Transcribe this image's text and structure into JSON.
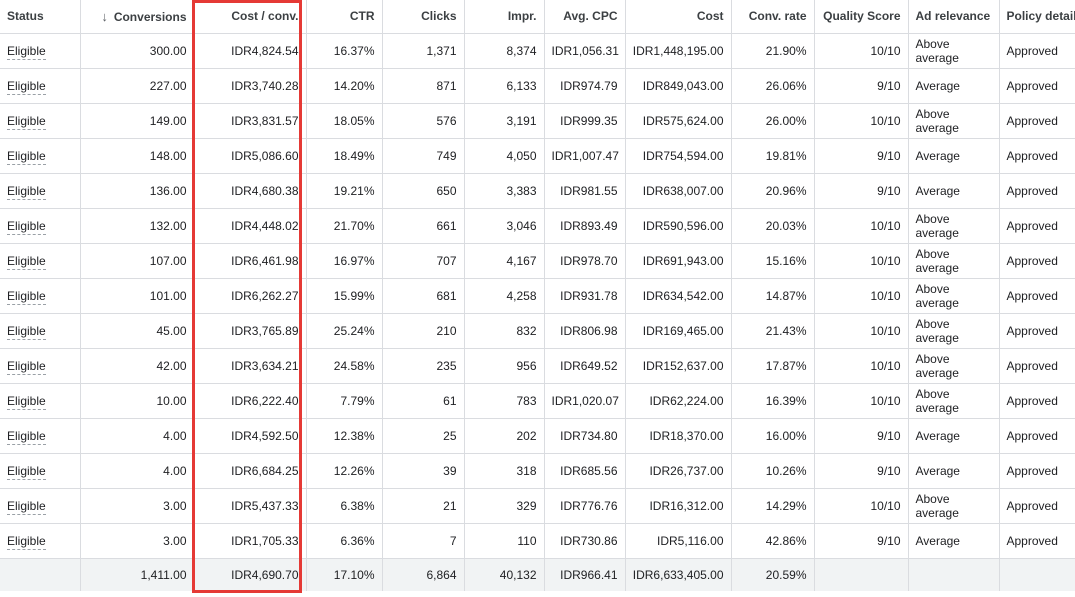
{
  "headers": {
    "status": "Status",
    "conversions": "Conversions",
    "cost_conv": "Cost / conv.",
    "ctr": "CTR",
    "clicks": "Clicks",
    "impr": "Impr.",
    "avg_cpc": "Avg. CPC",
    "cost": "Cost",
    "conv_rate": "Conv. rate",
    "quality_score": "Quality Score",
    "ad_relevance": "Ad relevance",
    "policy_details": "Policy details"
  },
  "sort_icon": "arrow-down-icon",
  "rows": [
    {
      "status": "Eligible",
      "conversions": "300.00",
      "cost_conv": "IDR4,824.54",
      "ctr": "16.37%",
      "clicks": "1,371",
      "impr": "8,374",
      "avg_cpc": "IDR1,056.31",
      "cost": "IDR1,448,195.00",
      "conv_rate": "21.90%",
      "quality_score": "10/10",
      "ad_relevance": "Above average",
      "policy": "Approved"
    },
    {
      "status": "Eligible",
      "conversions": "227.00",
      "cost_conv": "IDR3,740.28",
      "ctr": "14.20%",
      "clicks": "871",
      "impr": "6,133",
      "avg_cpc": "IDR974.79",
      "cost": "IDR849,043.00",
      "conv_rate": "26.06%",
      "quality_score": "9/10",
      "ad_relevance": "Average",
      "policy": "Approved"
    },
    {
      "status": "Eligible",
      "conversions": "149.00",
      "cost_conv": "IDR3,831.57",
      "ctr": "18.05%",
      "clicks": "576",
      "impr": "3,191",
      "avg_cpc": "IDR999.35",
      "cost": "IDR575,624.00",
      "conv_rate": "26.00%",
      "quality_score": "10/10",
      "ad_relevance": "Above average",
      "policy": "Approved"
    },
    {
      "status": "Eligible",
      "conversions": "148.00",
      "cost_conv": "IDR5,086.60",
      "ctr": "18.49%",
      "clicks": "749",
      "impr": "4,050",
      "avg_cpc": "IDR1,007.47",
      "cost": "IDR754,594.00",
      "conv_rate": "19.81%",
      "quality_score": "9/10",
      "ad_relevance": "Average",
      "policy": "Approved"
    },
    {
      "status": "Eligible",
      "conversions": "136.00",
      "cost_conv": "IDR4,680.38",
      "ctr": "19.21%",
      "clicks": "650",
      "impr": "3,383",
      "avg_cpc": "IDR981.55",
      "cost": "IDR638,007.00",
      "conv_rate": "20.96%",
      "quality_score": "9/10",
      "ad_relevance": "Average",
      "policy": "Approved"
    },
    {
      "status": "Eligible",
      "conversions": "132.00",
      "cost_conv": "IDR4,448.02",
      "ctr": "21.70%",
      "clicks": "661",
      "impr": "3,046",
      "avg_cpc": "IDR893.49",
      "cost": "IDR590,596.00",
      "conv_rate": "20.03%",
      "quality_score": "10/10",
      "ad_relevance": "Above average",
      "policy": "Approved"
    },
    {
      "status": "Eligible",
      "conversions": "107.00",
      "cost_conv": "IDR6,461.98",
      "ctr": "16.97%",
      "clicks": "707",
      "impr": "4,167",
      "avg_cpc": "IDR978.70",
      "cost": "IDR691,943.00",
      "conv_rate": "15.16%",
      "quality_score": "10/10",
      "ad_relevance": "Above average",
      "policy": "Approved"
    },
    {
      "status": "Eligible",
      "conversions": "101.00",
      "cost_conv": "IDR6,262.27",
      "ctr": "15.99%",
      "clicks": "681",
      "impr": "4,258",
      "avg_cpc": "IDR931.78",
      "cost": "IDR634,542.00",
      "conv_rate": "14.87%",
      "quality_score": "10/10",
      "ad_relevance": "Above average",
      "policy": "Approved"
    },
    {
      "status": "Eligible",
      "conversions": "45.00",
      "cost_conv": "IDR3,765.89",
      "ctr": "25.24%",
      "clicks": "210",
      "impr": "832",
      "avg_cpc": "IDR806.98",
      "cost": "IDR169,465.00",
      "conv_rate": "21.43%",
      "quality_score": "10/10",
      "ad_relevance": "Above average",
      "policy": "Approved"
    },
    {
      "status": "Eligible",
      "conversions": "42.00",
      "cost_conv": "IDR3,634.21",
      "ctr": "24.58%",
      "clicks": "235",
      "impr": "956",
      "avg_cpc": "IDR649.52",
      "cost": "IDR152,637.00",
      "conv_rate": "17.87%",
      "quality_score": "10/10",
      "ad_relevance": "Above average",
      "policy": "Approved"
    },
    {
      "status": "Eligible",
      "conversions": "10.00",
      "cost_conv": "IDR6,222.40",
      "ctr": "7.79%",
      "clicks": "61",
      "impr": "783",
      "avg_cpc": "IDR1,020.07",
      "cost": "IDR62,224.00",
      "conv_rate": "16.39%",
      "quality_score": "10/10",
      "ad_relevance": "Above average",
      "policy": "Approved"
    },
    {
      "status": "Eligible",
      "conversions": "4.00",
      "cost_conv": "IDR4,592.50",
      "ctr": "12.38%",
      "clicks": "25",
      "impr": "202",
      "avg_cpc": "IDR734.80",
      "cost": "IDR18,370.00",
      "conv_rate": "16.00%",
      "quality_score": "9/10",
      "ad_relevance": "Average",
      "policy": "Approved"
    },
    {
      "status": "Eligible",
      "conversions": "4.00",
      "cost_conv": "IDR6,684.25",
      "ctr": "12.26%",
      "clicks": "39",
      "impr": "318",
      "avg_cpc": "IDR685.56",
      "cost": "IDR26,737.00",
      "conv_rate": "10.26%",
      "quality_score": "9/10",
      "ad_relevance": "Average",
      "policy": "Approved"
    },
    {
      "status": "Eligible",
      "conversions": "3.00",
      "cost_conv": "IDR5,437.33",
      "ctr": "6.38%",
      "clicks": "21",
      "impr": "329",
      "avg_cpc": "IDR776.76",
      "cost": "IDR16,312.00",
      "conv_rate": "14.29%",
      "quality_score": "10/10",
      "ad_relevance": "Above average",
      "policy": "Approved"
    },
    {
      "status": "Eligible",
      "conversions": "3.00",
      "cost_conv": "IDR1,705.33",
      "ctr": "6.36%",
      "clicks": "7",
      "impr": "110",
      "avg_cpc": "IDR730.86",
      "cost": "IDR5,116.00",
      "conv_rate": "42.86%",
      "quality_score": "9/10",
      "ad_relevance": "Average",
      "policy": "Approved"
    }
  ],
  "totals": {
    "status": "",
    "conversions": "1,411.00",
    "cost_conv": "IDR4,690.70",
    "ctr": "17.10%",
    "clicks": "6,864",
    "impr": "40,132",
    "avg_cpc": "IDR966.41",
    "cost": "IDR6,633,405.00",
    "conv_rate": "20.59%",
    "quality_score": "",
    "ad_relevance": "",
    "policy": ""
  },
  "highlight_color": "#e53935"
}
